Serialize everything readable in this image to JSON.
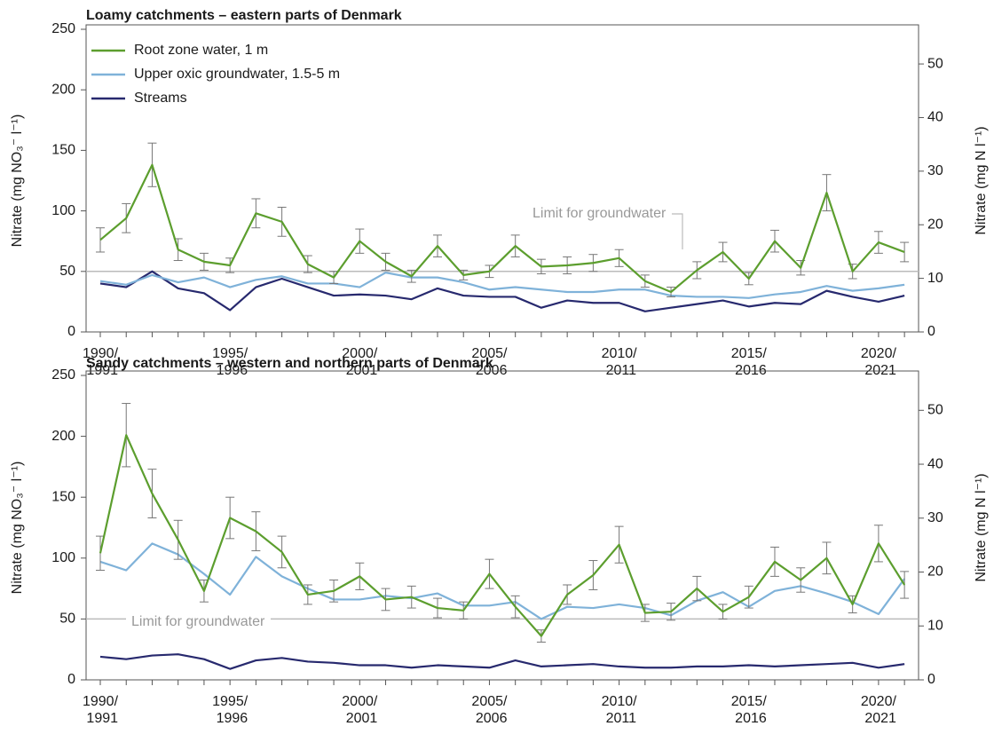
{
  "chart_data": [
    {
      "type": "line",
      "title": "Loamy catchments – eastern parts of Denmark",
      "ylabel": "Nitrate (mg NO₃⁻ l⁻¹)",
      "y2label": "Nitrate (mg N l⁻¹)",
      "categories": [
        "1990/\n1991",
        null,
        null,
        null,
        null,
        "1995/\n1996",
        null,
        null,
        null,
        null,
        "2000/\n2001",
        null,
        null,
        null,
        null,
        "2005/\n2006",
        null,
        null,
        null,
        null,
        "2010/\n2011",
        null,
        null,
        null,
        null,
        "2015/\n2016",
        null,
        null,
        null,
        null,
        "2020/\n2021",
        null
      ],
      "ylim": [
        0,
        250
      ],
      "yticks": [
        0,
        50,
        100,
        150,
        200,
        250
      ],
      "y2lim": [
        0,
        56.47
      ],
      "y2ticks": [
        0,
        10,
        20,
        30,
        40,
        50
      ],
      "hline": 50,
      "hline_label": "Limit for groundwater",
      "hline_color": "#bbbbbb",
      "legend": "upper left",
      "series": [
        {
          "name": "Root zone water, 1 m",
          "color": "#5c9e2e",
          "values": [
            76,
            94,
            138,
            68,
            58,
            55,
            98,
            91,
            56,
            45,
            75,
            58,
            46,
            71,
            47,
            50,
            71,
            54,
            55,
            57,
            61,
            42,
            33,
            51,
            66,
            44,
            75,
            53,
            115,
            50,
            74,
            66
          ],
          "errors": [
            10,
            12,
            18,
            9,
            7,
            6,
            12,
            12,
            7,
            5,
            10,
            7,
            5,
            9,
            4,
            5,
            9,
            6,
            7,
            7,
            7,
            5,
            4,
            7,
            8,
            5,
            9,
            6,
            15,
            6,
            9,
            8
          ]
        },
        {
          "name": "Upper oxic groundwater, 1.5-5 m",
          "color": "#7fb2d9",
          "values": [
            42,
            39,
            47,
            41,
            45,
            37,
            43,
            46,
            40,
            40,
            37,
            49,
            45,
            45,
            41,
            35,
            37,
            35,
            33,
            33,
            35,
            35,
            30,
            29,
            29,
            28,
            31,
            33,
            38,
            34,
            36,
            39
          ]
        },
        {
          "name": "Streams",
          "color": "#27296e",
          "values": [
            40,
            37,
            50,
            36,
            32,
            18,
            37,
            44,
            37,
            30,
            31,
            30,
            27,
            36,
            30,
            29,
            29,
            20,
            26,
            24,
            24,
            17,
            20,
            23,
            26,
            21,
            24,
            23,
            34,
            29,
            25,
            30
          ]
        }
      ]
    },
    {
      "type": "line",
      "title": "Sandy catchments – western and northern parts of Denmark",
      "ylabel": "Nitrate (mg NO₃⁻ l⁻¹)",
      "y2label": "Nitrate (mg N l⁻¹)",
      "categories": [
        "1990/\n1991",
        null,
        null,
        null,
        null,
        "1995/\n1996",
        null,
        null,
        null,
        null,
        "2000/\n2001",
        null,
        null,
        null,
        null,
        "2005/\n2006",
        null,
        null,
        null,
        null,
        "2010/\n2011",
        null,
        null,
        null,
        null,
        "2015/\n2016",
        null,
        null,
        null,
        null,
        "2020/\n2021",
        null
      ],
      "ylim": [
        0,
        250
      ],
      "yticks": [
        0,
        50,
        100,
        150,
        200,
        250
      ],
      "y2lim": [
        0,
        56.47
      ],
      "y2ticks": [
        0,
        10,
        20,
        30,
        40,
        50
      ],
      "hline": 50,
      "hline_label": "Limit for groundwater",
      "hline_color": "#bbbbbb",
      "series": [
        {
          "color": "#5c9e2e",
          "values": [
            104,
            201,
            153,
            115,
            73,
            133,
            122,
            105,
            70,
            73,
            85,
            66,
            68,
            59,
            57,
            87,
            60,
            36,
            70,
            86,
            111,
            55,
            56,
            75,
            56,
            68,
            97,
            82,
            100,
            62,
            112,
            78
          ],
          "errors": [
            14,
            26,
            20,
            16,
            9,
            17,
            16,
            13,
            8,
            9,
            11,
            9,
            9,
            8,
            7,
            12,
            9,
            5,
            8,
            12,
            15,
            7,
            7,
            10,
            6,
            9,
            12,
            10,
            13,
            7,
            15,
            11
          ]
        },
        {
          "color": "#7fb2d9",
          "values": [
            97,
            90,
            112,
            103,
            87,
            70,
            101,
            85,
            75,
            66,
            66,
            69,
            67,
            71,
            61,
            61,
            64,
            50,
            60,
            59,
            62,
            59,
            53,
            65,
            72,
            60,
            73,
            77,
            71,
            64,
            54,
            83
          ]
        },
        {
          "color": "#27296e",
          "values": [
            19,
            17,
            20,
            21,
            17,
            9,
            16,
            18,
            15,
            14,
            12,
            12,
            10,
            12,
            11,
            10,
            16,
            11,
            12,
            13,
            11,
            10,
            10,
            11,
            11,
            12,
            11,
            12,
            13,
            14,
            10,
            13
          ]
        }
      ]
    }
  ]
}
